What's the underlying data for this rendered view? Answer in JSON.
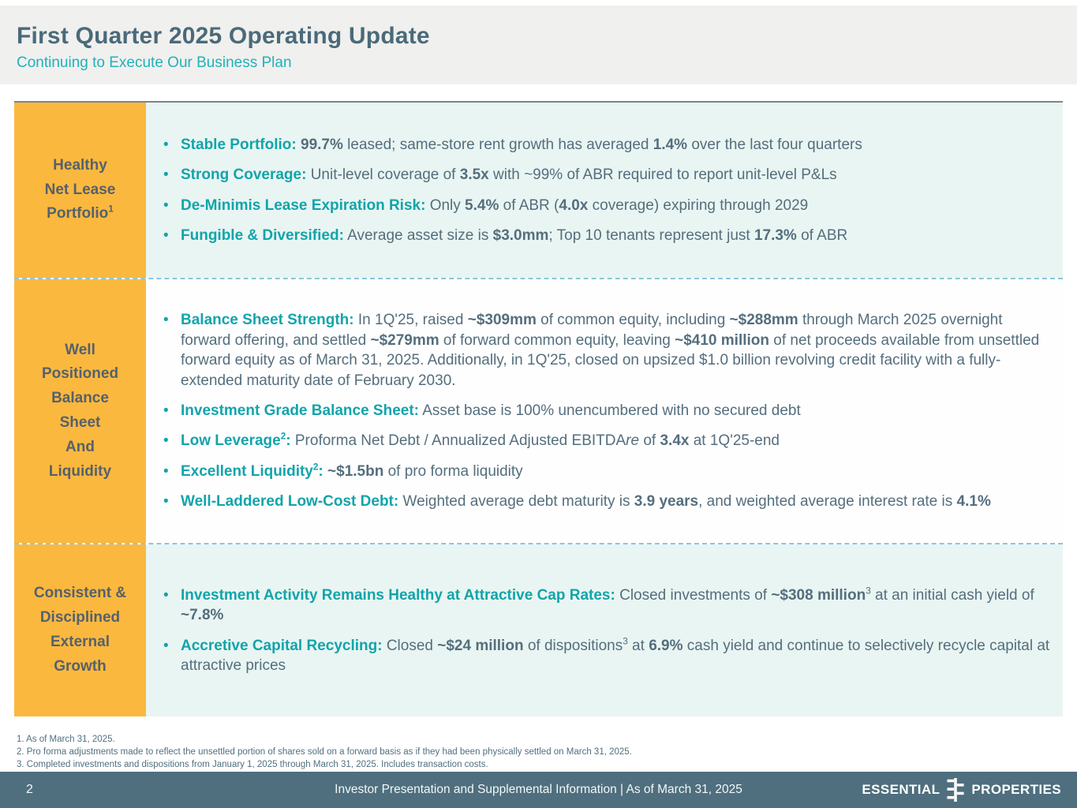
{
  "header": {
    "title": "First Quarter 2025 Operating Update",
    "subtitle": "Continuing to Execute Our Business Plan"
  },
  "colors": {
    "accent_teal": "#12a4ab",
    "label_yellow": "#fbb83f",
    "body_slate": "#546e7d",
    "tint_mint": "#e9f5f2",
    "footer_slate": "#4f6f7e"
  },
  "sections": [
    {
      "tint": true,
      "label_lines": [
        [
          {
            "t": "Healthy",
            "s": "N"
          }
        ],
        [
          {
            "t": "Net Lease",
            "s": "N"
          }
        ],
        [
          {
            "t": "Portfolio",
            "s": "N"
          },
          {
            "t": "1",
            "s": "SN"
          }
        ]
      ],
      "bullets": [
        [
          {
            "t": "Stable Portfolio: ",
            "s": "L"
          },
          {
            "t": "99.7%",
            "s": "B"
          },
          {
            "t": " leased; same-store rent growth has averaged ",
            "s": "N"
          },
          {
            "t": "1.4%",
            "s": "B"
          },
          {
            "t": " over the last four quarters",
            "s": "N"
          }
        ],
        [
          {
            "t": "Strong Coverage:",
            "s": "L"
          },
          {
            "t": " Unit-level coverage of ",
            "s": "N"
          },
          {
            "t": "3.5x",
            "s": "B"
          },
          {
            "t": " with ~99% of ABR required to report unit-level P&Ls",
            "s": "N"
          }
        ],
        [
          {
            "t": "De-Minimis Lease Expiration Risk:",
            "s": "L"
          },
          {
            "t": " Only ",
            "s": "N"
          },
          {
            "t": "5.4%",
            "s": "B"
          },
          {
            "t": " of ABR (",
            "s": "N"
          },
          {
            "t": "4.0x",
            "s": "B"
          },
          {
            "t": " coverage) expiring through 2029",
            "s": "N"
          }
        ],
        [
          {
            "t": "Fungible & Diversified:",
            "s": "L"
          },
          {
            "t": " Average asset size is ",
            "s": "N"
          },
          {
            "t": "$3.0mm",
            "s": "B"
          },
          {
            "t": "; Top 10 tenants represent just ",
            "s": "N"
          },
          {
            "t": "17.3%",
            "s": "B"
          },
          {
            "t": " of ABR",
            "s": "N"
          }
        ]
      ]
    },
    {
      "tint": false,
      "label_lines": [
        [
          {
            "t": "Well",
            "s": "N"
          }
        ],
        [
          {
            "t": "Positioned",
            "s": "N"
          }
        ],
        [
          {
            "t": "Balance",
            "s": "N"
          }
        ],
        [
          {
            "t": "Sheet",
            "s": "N"
          }
        ],
        [
          {
            "t": "And",
            "s": "N"
          }
        ],
        [
          {
            "t": "Liquidity",
            "s": "N"
          }
        ]
      ],
      "bullets": [
        [
          {
            "t": "Balance Sheet Strength:",
            "s": "L"
          },
          {
            "t": " In 1Q'25, raised ",
            "s": "N"
          },
          {
            "t": "~$309mm",
            "s": "B"
          },
          {
            "t": " of common equity, including ",
            "s": "N"
          },
          {
            "t": "~$288mm",
            "s": "B"
          },
          {
            "t": " through March 2025 overnight forward offering, and settled ",
            "s": "N"
          },
          {
            "t": "~$279mm",
            "s": "B"
          },
          {
            "t": " of forward common equity, leaving ",
            "s": "N"
          },
          {
            "t": "~$410 million",
            "s": "B"
          },
          {
            "t": " of net proceeds available from unsettled forward equity as of March 31, 2025.  Additionally, in 1Q'25, closed on upsized $1.0 billion revolving credit facility with a fully-extended maturity date of February 2030.",
            "s": "N"
          }
        ],
        [
          {
            "t": "Investment Grade Balance Sheet:",
            "s": "L"
          },
          {
            "t": " Asset base is 100% unencumbered with no secured debt",
            "s": "N"
          }
        ],
        [
          {
            "t": "Low Leverage",
            "s": "L"
          },
          {
            "t": "2",
            "s": "SL"
          },
          {
            "t": ":",
            "s": "L"
          },
          {
            "t": " Proforma Net Debt / Annualized Adjusted EBITDA",
            "s": "N"
          },
          {
            "t": "re",
            "s": "I"
          },
          {
            "t": " of ",
            "s": "N"
          },
          {
            "t": "3.4x",
            "s": "B"
          },
          {
            "t": " at 1Q'25-end",
            "s": "N"
          }
        ],
        [
          {
            "t": "Excellent Liquidity",
            "s": "L"
          },
          {
            "t": "2",
            "s": "SL"
          },
          {
            "t": ":",
            "s": "L"
          },
          {
            "t": " ",
            "s": "N"
          },
          {
            "t": "~$1.5bn",
            "s": "B"
          },
          {
            "t": " of pro forma liquidity",
            "s": "N"
          }
        ],
        [
          {
            "t": "Well-Laddered Low-Cost Debt:",
            "s": "L"
          },
          {
            "t": " Weighted average debt maturity is ",
            "s": "N"
          },
          {
            "t": "3.9 years",
            "s": "B"
          },
          {
            "t": ", and weighted average interest rate is ",
            "s": "N"
          },
          {
            "t": "4.1%",
            "s": "B"
          }
        ]
      ]
    },
    {
      "tint": true,
      "label_lines": [
        [
          {
            "t": "Consistent &",
            "s": "N"
          }
        ],
        [
          {
            "t": "Disciplined",
            "s": "N"
          }
        ],
        [
          {
            "t": "External",
            "s": "N"
          }
        ],
        [
          {
            "t": "Growth",
            "s": "N"
          }
        ]
      ],
      "bullets": [
        [
          {
            "t": "Investment Activity Remains Healthy at Attractive Cap Rates:",
            "s": "L"
          },
          {
            "t": " Closed investments of ",
            "s": "N"
          },
          {
            "t": "~$308 million",
            "s": "B"
          },
          {
            "t": "3",
            "s": "SN"
          },
          {
            "t": " at an initial cash yield of ",
            "s": "N"
          },
          {
            "t": "~7.8%",
            "s": "B"
          }
        ],
        [
          {
            "t": "Accretive Capital Recycling:",
            "s": "L"
          },
          {
            "t": " Closed ",
            "s": "N"
          },
          {
            "t": "~$24 million",
            "s": "B"
          },
          {
            "t": " of dispositions",
            "s": "N"
          },
          {
            "t": "3",
            "s": "SN"
          },
          {
            "t": " at ",
            "s": "N"
          },
          {
            "t": "6.9%",
            "s": "B"
          },
          {
            "t": " cash yield and continue to selectively recycle capital at attractive prices",
            "s": "N"
          }
        ]
      ]
    }
  ],
  "footnotes": [
    "1.  As of March 31, 2025.",
    "2.  Pro forma adjustments made to reflect the unsettled portion of shares sold on a forward basis as if they had been physically settled on March 31, 2025.",
    "3.  Completed investments and dispositions from January 1, 2025 through March 31, 2025. Includes transaction costs."
  ],
  "footer": {
    "page_number": "2",
    "caption": "Investor Presentation and Supplemental Information |  As of March 31, 2025",
    "logo_word1": "ESSENTIAL",
    "logo_word2": "PROPERTIES"
  }
}
